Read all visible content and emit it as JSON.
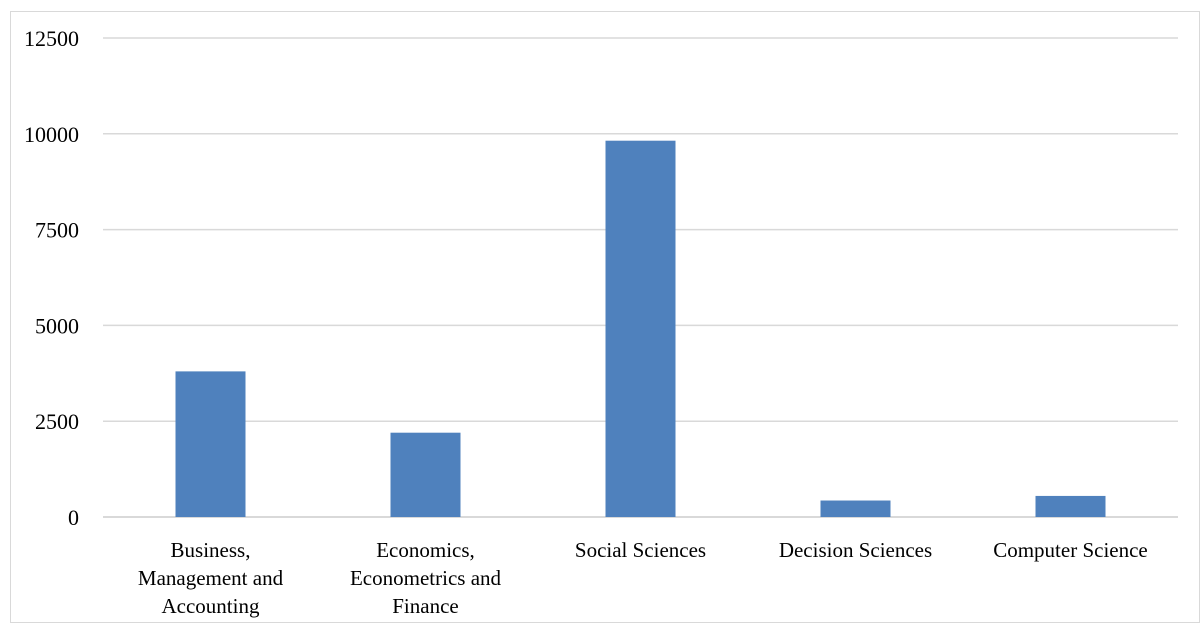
{
  "chart_data": {
    "type": "bar",
    "categories": [
      [
        "Business,",
        "Management and",
        "Accounting"
      ],
      [
        "Economics,",
        "Econometrics and",
        "Finance"
      ],
      [
        "Social Sciences"
      ],
      [
        "Decision Sciences"
      ],
      [
        "Computer Science"
      ]
    ],
    "values": [
      3800,
      2200,
      9820,
      430,
      550
    ],
    "yticks": [
      "0",
      "2500",
      "5000",
      "7500",
      "10000",
      "12500"
    ],
    "ylim": [
      0,
      12500
    ],
    "grid": true,
    "legend": "none",
    "bar_color": "#4f81bd",
    "grid_color": "#d9d9d9",
    "title": "",
    "xlabel": "",
    "ylabel": ""
  }
}
